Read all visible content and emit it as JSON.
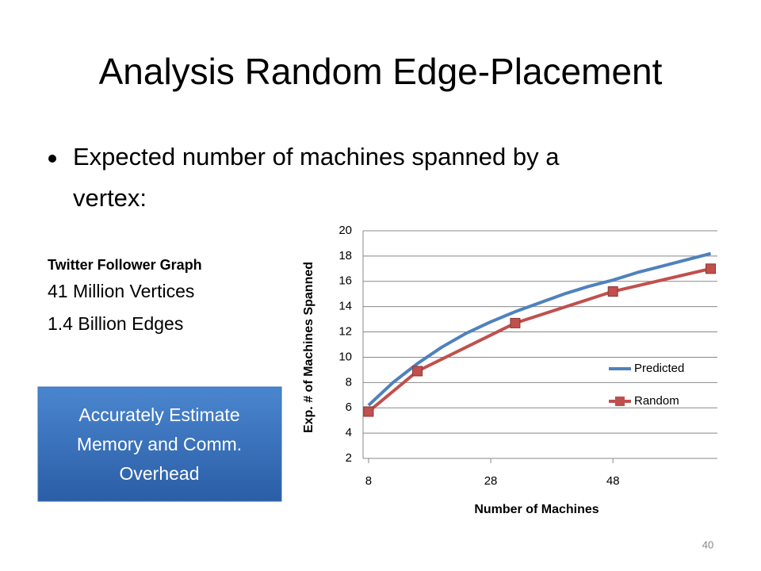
{
  "slide": {
    "title": "Analysis Random Edge-Placement",
    "bullet": [
      "Expected number of machines spanned by a",
      "vertex:"
    ],
    "graph_name": "Twitter Follower Graph",
    "vertices": "41 Million Vertices",
    "edges": "1.4 Billion Edges",
    "callout": [
      "Accurately Estimate",
      "Memory and Comm.",
      "Overhead"
    ],
    "page_number": "40"
  },
  "chart_data": {
    "type": "line",
    "x_label": "Number of Machines",
    "y_label": "Exp. # of Machines Spanned",
    "xlim": [
      7.1,
      65.1
    ],
    "xticks": [
      8,
      28,
      48
    ],
    "ylim": [
      2,
      20
    ],
    "yticks": [
      2,
      4,
      6,
      8,
      10,
      12,
      14,
      16,
      18,
      20
    ],
    "grid": true,
    "legend": "right",
    "series": [
      {
        "name": "Predicted",
        "color": "#4f81bd",
        "marker": "none",
        "x": [
          8,
          12,
          16,
          20,
          24,
          28,
          32,
          36,
          40,
          44,
          48,
          52,
          56,
          60,
          64
        ],
        "values": [
          6.2,
          8.0,
          9.5,
          10.8,
          11.9,
          12.8,
          13.6,
          14.3,
          15.0,
          15.6,
          16.1,
          16.7,
          17.2,
          17.7,
          18.2
        ]
      },
      {
        "name": "Random",
        "color": "#c0504d",
        "marker": "square",
        "x": [
          8,
          16,
          32,
          48,
          64
        ],
        "values": [
          5.7,
          8.9,
          12.7,
          15.2,
          17.0
        ]
      }
    ]
  }
}
